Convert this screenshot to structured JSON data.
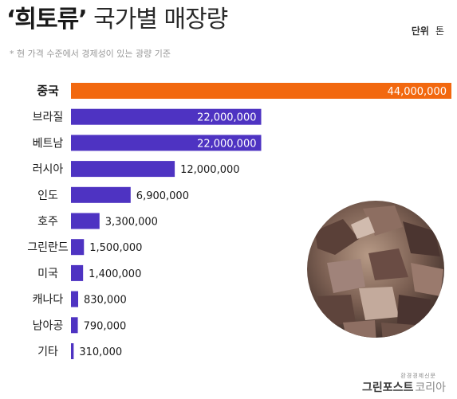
{
  "title_bold": "‘희토류’",
  "title_rest": "국가별 매장량",
  "unit_label": "단위",
  "unit_value": "톤",
  "subtitle": "* 현 가격 수준에서 경제성이 있는 광량 기준",
  "footer": {
    "small": "환경경제신문",
    "logo_main": "그린포스트",
    "logo_sub": "코리아"
  },
  "colors": {
    "highlight": "#F2680F",
    "bar": "#4E33C2",
    "text": "#1A1A1A",
    "value_on_bar": "#FFFFFF"
  },
  "image": "rare-earth-ore-photo",
  "chart_data": {
    "type": "bar",
    "orientation": "horizontal",
    "title": "‘희토류’ 국가별 매장량",
    "unit": "톤",
    "categories": [
      "중국",
      "브라질",
      "베트남",
      "러시아",
      "인도",
      "호주",
      "그린란드",
      "미국",
      "캐나다",
      "남아공",
      "기타"
    ],
    "values": [
      44000000,
      22000000,
      22000000,
      12000000,
      6900000,
      3300000,
      1500000,
      1400000,
      830000,
      790000,
      310000
    ],
    "value_labels": [
      "44,000,000",
      "22,000,000",
      "22,000,000",
      "12,000,000",
      "6,900,000",
      "3,300,000",
      "1,500,000",
      "1,400,000",
      "830,000",
      "790,000",
      "310,000"
    ],
    "highlight_index": 0,
    "xlim": [
      0,
      44000000
    ],
    "grid": false,
    "legend": "none"
  }
}
